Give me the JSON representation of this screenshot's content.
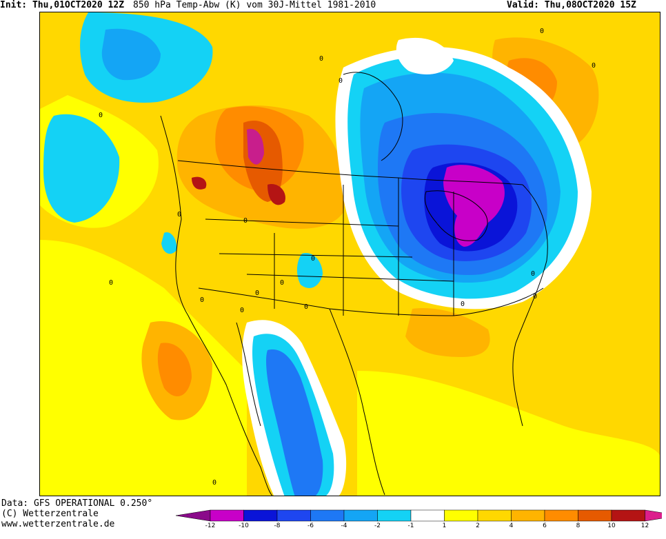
{
  "header": {
    "init_label": "Init:",
    "init_value": "Thu,01OCT2020 12Z",
    "title": "850 hPa Temp-Abw (K) vom 30J-Mittel 1981-2010",
    "valid_label": "Valid:",
    "valid_value": "Thu,08OCT2020 15Z"
  },
  "footer": {
    "data_line": "Data: GFS OPERATIONAL 0.250°",
    "copyright": "(C) Wetterzentrale",
    "url": "www.wetterzentrale.de"
  },
  "map": {
    "contour_labels": [
      "0",
      "0",
      "0",
      "0",
      "0",
      "0",
      "0",
      "0",
      "0",
      "0",
      "0",
      "0",
      "0",
      "0",
      "0",
      "0",
      "0",
      "0"
    ]
  },
  "legend": {
    "tick_labels": [
      "-12",
      "-10",
      "-8",
      "-6",
      "-4",
      "-2",
      "-1",
      "1",
      "2",
      "4",
      "6",
      "8",
      "10",
      "12"
    ],
    "colors": {
      "below_-12": "#8a0a8a",
      "-12_-10": "#c800c8",
      "-10_-8": "#0a14d8",
      "-8_-6": "#1e46f0",
      "-6_-4": "#1e78f5",
      "-4_-2": "#14a5f5",
      "-2_-1": "#14d2f5",
      "-1_1": "#ffffff",
      "1_2": "#ffff00",
      "2_4": "#ffd800",
      "4_6": "#ffb400",
      "6_8": "#ff8c00",
      "8_10": "#e65a00",
      "10_12": "#b41414",
      "above_12": "#dc1e8c"
    }
  }
}
